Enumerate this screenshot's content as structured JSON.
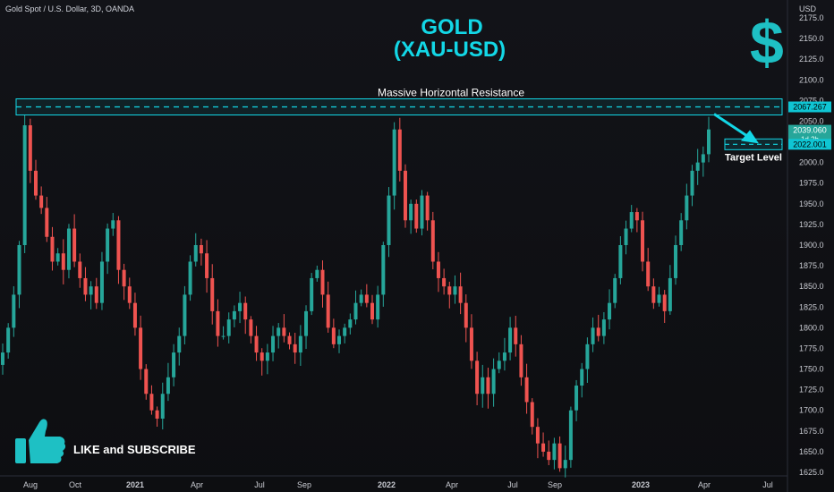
{
  "header": {
    "symbol": "Gold Spot / U.S. Dollar, 3D, OANDA",
    "title_line1": "GOLD",
    "title_line2": "(XAU-USD)",
    "currency": "USD"
  },
  "icons": {
    "dollar_sign": "$",
    "thumb": "thumbs-up-icon"
  },
  "subscribe_text": "LIKE and SUBSCRIBE",
  "colors": {
    "up": "#26a69a",
    "down": "#ef5350",
    "accent": "#13d7e6",
    "background": "#0f1014"
  },
  "chart_data": {
    "type": "candlestick",
    "symbol": "XAU-USD",
    "timeframe": "3D",
    "ylim": [
      1620,
      2180
    ],
    "y_ticks": [
      1625,
      1650,
      1675,
      1700,
      1725,
      1750,
      1775,
      1800,
      1825,
      1850,
      1875,
      1900,
      1925,
      1950,
      1975,
      2000,
      2025,
      2050,
      2075,
      2100,
      2125,
      2150,
      2175
    ],
    "x_ticks": [
      "Aug",
      "Oct",
      "2021",
      "Apr",
      "Jul",
      "Sep",
      "2022",
      "Apr",
      "Jul",
      "Sep",
      "2023",
      "Apr",
      "Jul"
    ],
    "close_path": [
      1770,
      1800,
      1840,
      1900,
      2045,
      1990,
      1960,
      1945,
      1910,
      1880,
      1890,
      1870,
      1920,
      1880,
      1860,
      1840,
      1850,
      1830,
      1880,
      1920,
      1930,
      1870,
      1850,
      1830,
      1800,
      1750,
      1720,
      1700,
      1690,
      1720,
      1740,
      1770,
      1790,
      1840,
      1880,
      1900,
      1890,
      1860,
      1820,
      1790,
      1790,
      1810,
      1820,
      1830,
      1810,
      1790,
      1770,
      1760,
      1770,
      1790,
      1800,
      1790,
      1780,
      1770,
      1790,
      1820,
      1860,
      1870,
      1840,
      1800,
      1780,
      1790,
      1800,
      1810,
      1830,
      1840,
      1830,
      1810,
      1840,
      1900,
      1960,
      2040,
      1990,
      1930,
      1950,
      1920,
      1960,
      1930,
      1880,
      1860,
      1850,
      1840,
      1850,
      1830,
      1800,
      1760,
      1720,
      1740,
      1720,
      1750,
      1760,
      1770,
      1800,
      1780,
      1740,
      1710,
      1680,
      1660,
      1650,
      1640,
      1660,
      1630,
      1640,
      1700,
      1730,
      1750,
      1780,
      1800,
      1790,
      1810,
      1830,
      1860,
      1900,
      1920,
      1940,
      1930,
      1880,
      1850,
      1830,
      1840,
      1820,
      1860,
      1900,
      1930,
      1960,
      1990,
      2000,
      2010,
      2040
    ],
    "resistance_label": "Massive Horizontal Resistance",
    "resistance_level": 2067.267,
    "target_label": "Target Level",
    "target_level": 2022.001,
    "current_price": 2039.06,
    "current_price_countdown": "1d 2h",
    "price_tags": [
      "2067.267",
      "2039.060",
      "1d 2h",
      "2022.001"
    ]
  }
}
